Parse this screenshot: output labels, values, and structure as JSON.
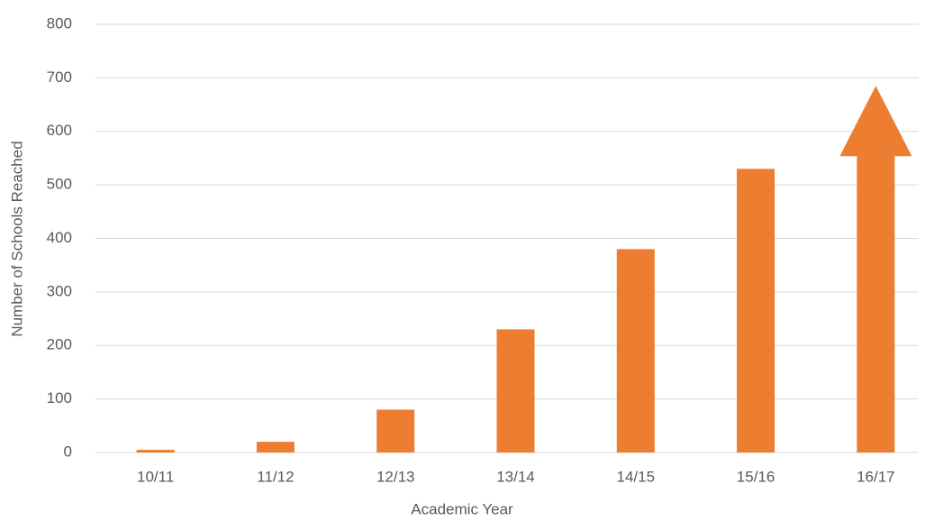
{
  "chart_data": {
    "type": "bar",
    "x_label": "Academic Year",
    "y_label": "Number of Schools Reached",
    "categories": [
      "10/11",
      "11/12",
      "12/13",
      "13/14",
      "14/15",
      "15/16",
      "16/17"
    ],
    "values": [
      5,
      20,
      80,
      230,
      380,
      530,
      685
    ],
    "color": "#ed7d31",
    "last_bar_arrow": true,
    "ylim": [
      0,
      800
    ],
    "yticks": [
      0,
      100,
      200,
      300,
      400,
      500,
      600,
      700,
      800
    ],
    "grid": true
  }
}
